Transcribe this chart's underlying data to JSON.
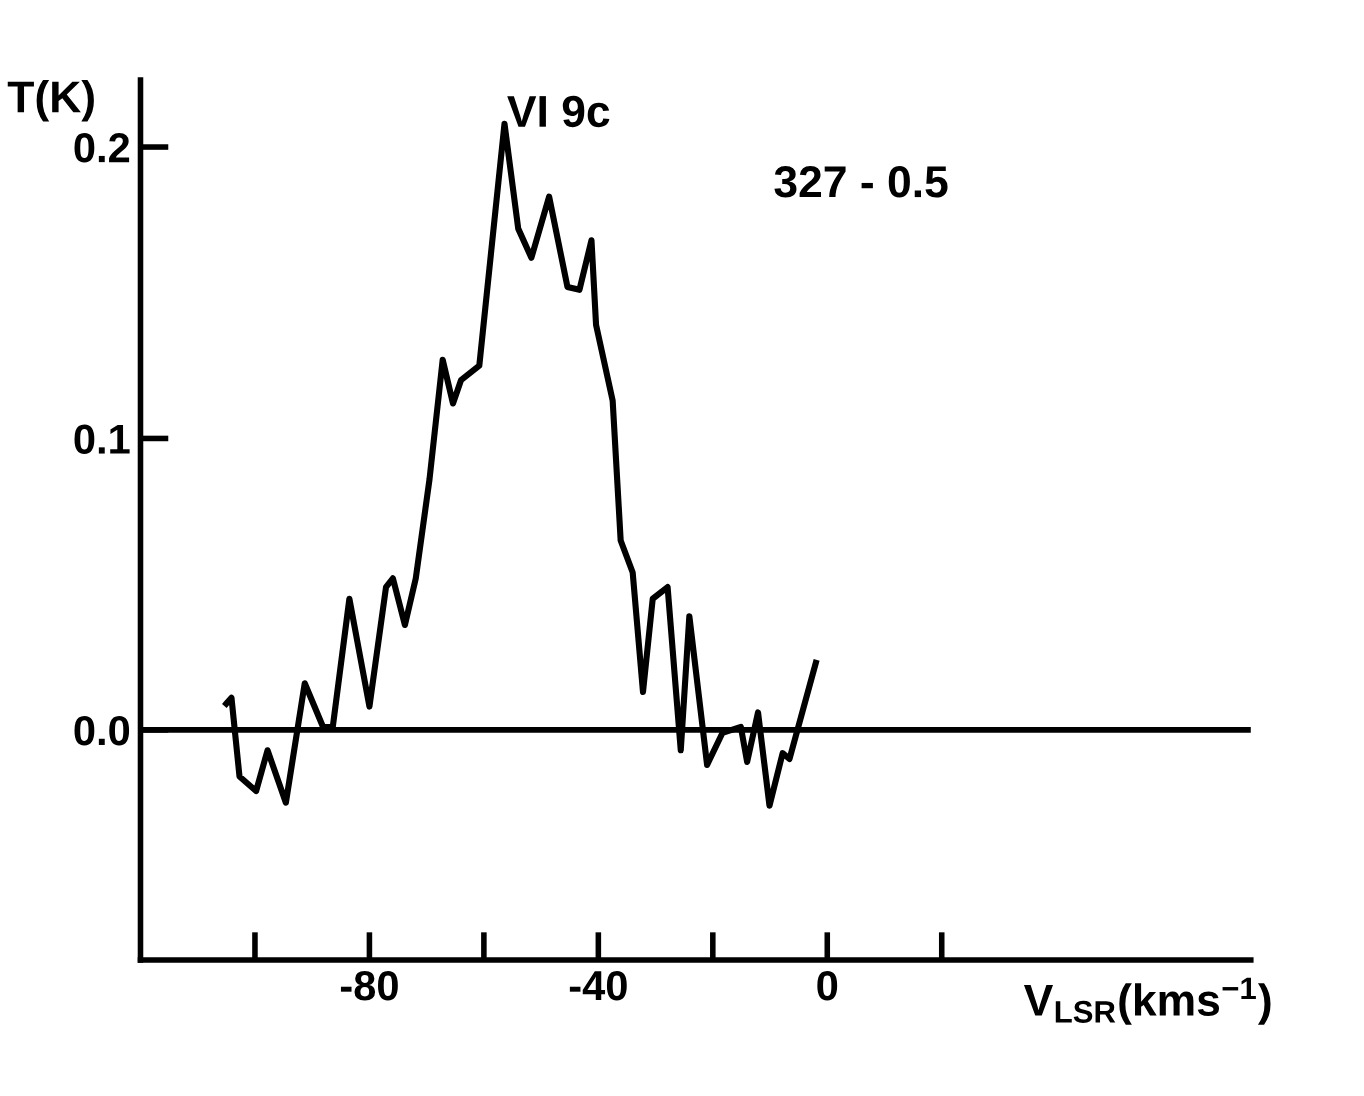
{
  "chart_data": {
    "type": "line",
    "xlabel": "V$_{LSR}$(kms$^{−1}$)",
    "ylabel": "T(K)",
    "annotations": [
      "VI 9c",
      "327 - 0.5"
    ],
    "x": [
      -105.0,
      -104.1,
      -102.7,
      -99.8,
      -97.8,
      -94.6,
      -91.3,
      -88.1,
      -86.4,
      -83.5,
      -80.0,
      -77.1,
      -75.9,
      -73.8,
      -71.9,
      -69.5,
      -67.2,
      -65.4,
      -64.0,
      -60.8,
      -56.4,
      -54.0,
      -51.7,
      -48.6,
      -45.4,
      -43.3,
      -41.2,
      -40.4,
      -37.5,
      -36.1,
      -34.0,
      -32.2,
      -30.5,
      -27.9,
      -25.6,
      -24.1,
      -21.0,
      -18.3,
      -15.1,
      -14.0,
      -12.1,
      -10.1,
      -7.8,
      -6.6,
      -2.0
    ],
    "series": [
      {
        "color": "#000000",
        "values": [
          0.009,
          0.011,
          -0.016,
          -0.021,
          -0.007,
          -0.025,
          0.016,
          0.001,
          0.001,
          0.045,
          0.008,
          0.049,
          0.052,
          0.036,
          0.052,
          0.086,
          0.127,
          0.112,
          0.12,
          0.125,
          0.208,
          0.172,
          0.162,
          0.183,
          0.152,
          0.151,
          0.168,
          0.139,
          0.113,
          0.065,
          0.054,
          0.013,
          0.045,
          0.049,
          -0.007,
          0.039,
          -0.012,
          -0.001,
          0.001,
          -0.011,
          0.006,
          -0.026,
          -0.008,
          -0.01,
          0.023
        ]
      }
    ],
    "xlim": [
      -120,
      74
    ],
    "ylim": [
      -0.079,
      0.223
    ],
    "xticks": [
      {
        "value": -100,
        "label": null
      },
      -80,
      {
        "value": -60,
        "label": null
      },
      -40,
      {
        "value": -20,
        "label": null
      },
      0,
      {
        "value": 20,
        "label": null
      }
    ],
    "yticks": [
      {
        "value": 0,
        "label": "0.0"
      },
      0.1,
      0.2
    ],
    "ref_lines": [
      {
        "axis": "y",
        "value": 0,
        "color": "#000000"
      }
    ],
    "grid": false,
    "legend": false,
    "marker": "none",
    "line_style": "solid"
  }
}
